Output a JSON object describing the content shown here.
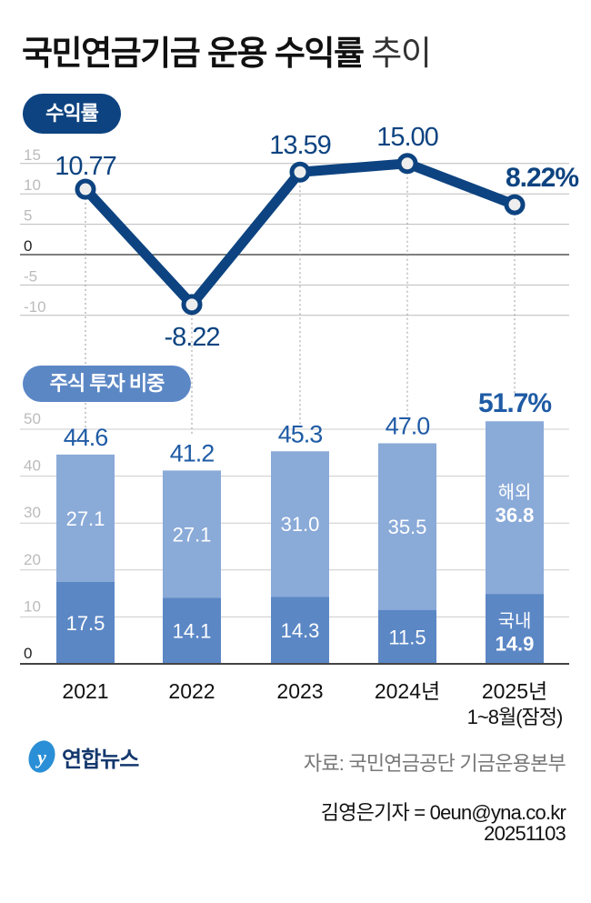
{
  "title": {
    "bold": "국민연금기금 운용 수익률",
    "light": "추이"
  },
  "colors": {
    "navy": "#0d4380",
    "domestic": "#5b87c5",
    "overseas": "#8aaad8",
    "label_blue": "#1f5ba5"
  },
  "chart_data": [
    {
      "type": "line",
      "title": "수익률",
      "categories": [
        "2021",
        "2022",
        "2023",
        "2024년",
        "2025년"
      ],
      "values": [
        10.77,
        -8.22,
        13.59,
        15.0,
        8.22
      ],
      "data_labels": [
        "10.77",
        "-8.22",
        "13.59",
        "15.00",
        "8.22%"
      ],
      "yticks": [
        "15",
        "10",
        "5",
        "0",
        "-5",
        "-10"
      ],
      "ylim": [
        -10,
        15
      ],
      "grid": true
    },
    {
      "type": "bar",
      "stacked": true,
      "title": "주식 투자 비중",
      "categories": [
        "2021",
        "2022",
        "2023",
        "2024년",
        "2025년"
      ],
      "category_sublabels": [
        "",
        "",
        "",
        "",
        "1~8월(잠정)"
      ],
      "series": [
        {
          "name": "국내",
          "values": [
            17.5,
            14.1,
            14.3,
            11.5,
            14.9
          ]
        },
        {
          "name": "해외",
          "values": [
            27.1,
            27.1,
            31.0,
            35.5,
            36.8
          ]
        }
      ],
      "totals": [
        "44.6",
        "41.2",
        "45.3",
        "47.0",
        "51.7%"
      ],
      "yticks": [
        "50",
        "40",
        "30",
        "20",
        "10",
        "0"
      ],
      "ylim": [
        0,
        50
      ],
      "grid": true
    }
  ],
  "footer": {
    "logo": "연합뉴스",
    "source": "자료: 국민연금공단 기금운용본부",
    "byline": "김영은기자 = 0eun@yna.co.kr",
    "date": "20251103"
  }
}
